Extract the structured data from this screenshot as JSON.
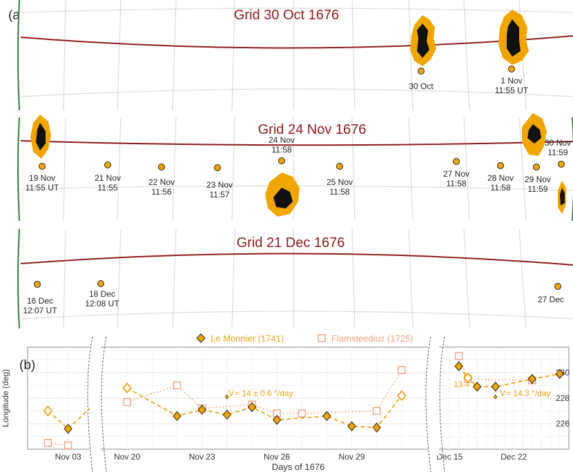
{
  "colors": {
    "grid_title": "#8b1a1a",
    "equator": "#8b1a1a",
    "limb": "#2e7d32",
    "spot_outer": "#f0a500",
    "spot_core": "#111111",
    "marker": "#f0a500",
    "le_monnier": "#e8a317",
    "le_monnier_fill": "#f0a500",
    "flamsteed": "#f0a080",
    "text": "#222222"
  },
  "panel_a": {
    "label": "(a)",
    "strips": [
      {
        "title": "Grid 30 Oct 1676",
        "spots": [
          {
            "name": "spot-30oct"
          },
          {
            "name": "spot-1nov"
          }
        ],
        "observations": [
          {
            "line1": "30 Oct",
            "line2": ""
          },
          {
            "line1": "1 Nov",
            "line2": "11:55 UT"
          }
        ]
      },
      {
        "title": "Grid 24 Nov 1676",
        "observations": [
          {
            "line1": "19 Nov",
            "line2": "11:55 UT"
          },
          {
            "line1": "21 Nov",
            "line2": "11:55"
          },
          {
            "line1": "22 Nov",
            "line2": "11:56"
          },
          {
            "line1": "23 Nov",
            "line2": "11:57"
          },
          {
            "line1": "24 Nov",
            "line2": "11:58"
          },
          {
            "line1": "25 Nov",
            "line2": "11:58"
          },
          {
            "line1": "27 Nov",
            "line2": "11:58"
          },
          {
            "line1": "28 Nov",
            "line2": "11:58"
          },
          {
            "line1": "29 Nov",
            "line2": "11:59"
          },
          {
            "line1": "30 Nov",
            "line2": "11:59"
          }
        ]
      },
      {
        "title": "Grid 21 Dec 1676",
        "observations": [
          {
            "line1": "16 Dec",
            "line2": "12:07 UT"
          },
          {
            "line1": "18 Dec",
            "line2": "12:08 UT"
          },
          {
            "line1": "27 Dec",
            "line2": ""
          }
        ]
      }
    ]
  },
  "panel_b": {
    "label": "(b)",
    "legend": [
      "Le Monnier (1741)",
      "Flamsteedius (1725)"
    ],
    "annotations": {
      "v1_prefix": "V",
      "v1_text": " = 14 ± 0.6 °/day",
      "v2_prefix": "V",
      "v2_text": " = 14.3 °/day",
      "v2_left": "13.4"
    }
  },
  "chart_data": {
    "type": "scatter",
    "xlabel": "Days of 1676",
    "ylabel": "Longitude (deg)",
    "ylim": [
      224,
      232
    ],
    "yticks": [
      226,
      228,
      230
    ],
    "grid": true,
    "legend_position": "top",
    "xtick_labels": [
      "Nov 03",
      "Nov 20",
      "Nov 23",
      "Nov 26",
      "Nov 29",
      "Dec 15",
      "Dec 22"
    ],
    "axis_breaks": "two broken-axis markers between Nov 03–Nov 19 and Nov 30–Dec 14",
    "series": [
      {
        "name": "Le Monnier (1741)",
        "marker": "diamond",
        "x": [
          "1676-11-02",
          "1676-11-03",
          "1676-11-20",
          "1676-11-22",
          "1676-11-23",
          "1676-11-24",
          "1676-11-25",
          "1676-11-26",
          "1676-11-28",
          "1676-11-29",
          "1676-11-30",
          "1676-12-01",
          "1676-12-16",
          "1676-12-17",
          "1676-12-18",
          "1676-12-20",
          "1676-12-24",
          "1676-12-27"
        ],
        "y": [
          227.0,
          225.6,
          228.8,
          226.6,
          227.1,
          226.7,
          227.3,
          226.3,
          226.6,
          225.8,
          225.7,
          228.2,
          230.5,
          229.6,
          228.9,
          228.9,
          229.5,
          229.9
        ],
        "open_points": [
          "1676-11-02",
          "1676-11-20",
          "1676-12-01",
          "1676-12-17"
        ]
      },
      {
        "name": "Flamsteedius (1725)",
        "marker": "open-square",
        "x": [
          "1676-11-02",
          "1676-11-03",
          "1676-11-20",
          "1676-11-22",
          "1676-11-23",
          "1676-11-25",
          "1676-11-26",
          "1676-11-27",
          "1676-11-30",
          "1676-12-01",
          "1676-12-16",
          "1676-12-17",
          "1676-12-24"
        ],
        "y": [
          224.5,
          224.3,
          227.7,
          229.0,
          227.2,
          227.5,
          226.8,
          226.8,
          227.0,
          230.2,
          231.3,
          229.5,
          229.4
        ]
      }
    ],
    "annotations": [
      {
        "text": "V = 14 ± 0.6 °/day",
        "marker_date": "1676-11-24",
        "marker_y": 228.1
      },
      {
        "text": "V = 14.3 °/day",
        "marker_date": "1676-12-20",
        "marker_y": 228.1
      },
      {
        "text": "13.4"
      }
    ]
  }
}
